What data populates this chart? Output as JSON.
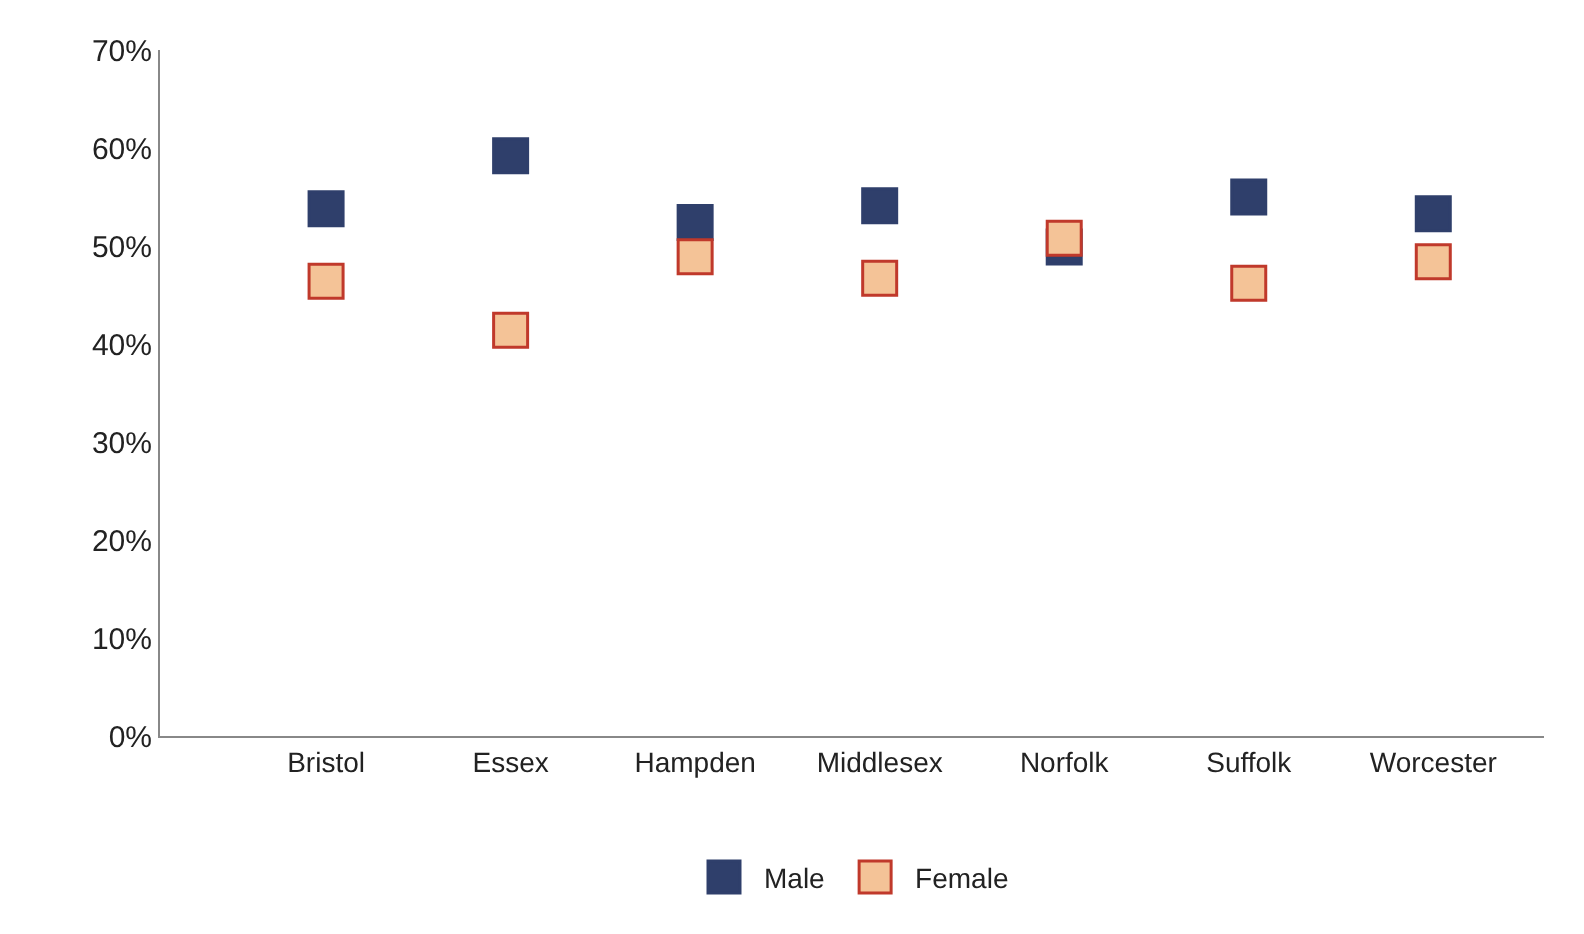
{
  "chart_data": {
    "type": "scatter",
    "categories": [
      "Bristol",
      "Essex",
      "Hampden",
      "Middlesex",
      "Norfolk",
      "Suffolk",
      "Worcester"
    ],
    "series": [
      {
        "name": "Male",
        "color": "#2f3f6b",
        "values": [
          53.8,
          59.2,
          52.4,
          54.1,
          49.9,
          55.0,
          53.3
        ]
      },
      {
        "name": "Female",
        "color": "#f4c397",
        "values": [
          46.4,
          41.4,
          48.9,
          46.7,
          50.8,
          46.2,
          48.4
        ]
      }
    ],
    "ylim": [
      0,
      70
    ],
    "yticks": [
      {
        "value": 0,
        "label": "0%"
      },
      {
        "value": 10,
        "label": "10%"
      },
      {
        "value": 20,
        "label": "20%"
      },
      {
        "value": 30,
        "label": "30%"
      },
      {
        "value": 40,
        "label": "40%"
      },
      {
        "value": 50,
        "label": "50%"
      },
      {
        "value": 60,
        "label": "60%"
      },
      {
        "value": 70,
        "label": "70%"
      }
    ],
    "legend": "bottom",
    "marker": "square"
  }
}
